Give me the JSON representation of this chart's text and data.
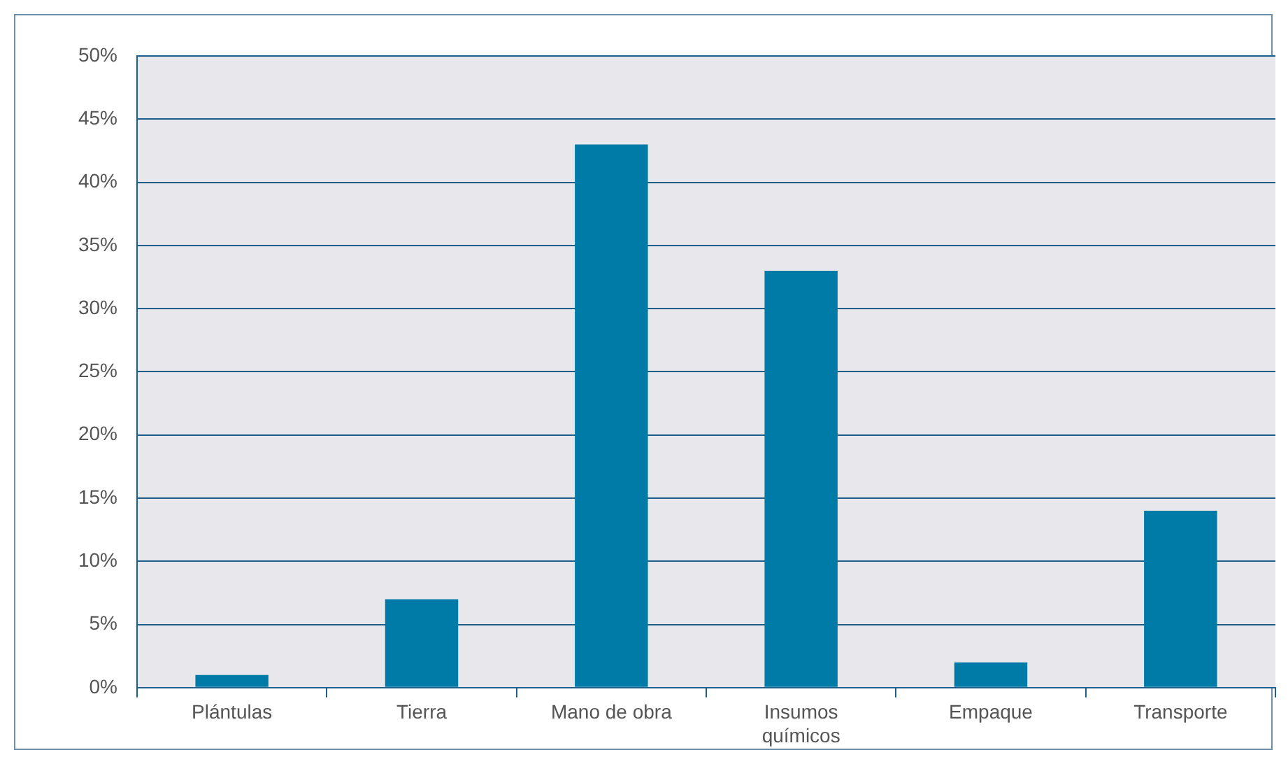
{
  "chart_data": {
    "type": "bar",
    "categories": [
      "Plántulas",
      "Tierra",
      "Mano de obra",
      "Insumos químicos",
      "Empaque",
      "Transporte"
    ],
    "values": [
      1,
      7,
      43,
      33,
      2,
      14
    ],
    "color": "#007ba7",
    "ylim": [
      0,
      50
    ],
    "yticks": [
      {
        "value": 0,
        "label": "0%"
      },
      {
        "value": 5,
        "label": "5%"
      },
      {
        "value": 10,
        "label": "10%"
      },
      {
        "value": 15,
        "label": "15%"
      },
      {
        "value": 20,
        "label": "20%"
      },
      {
        "value": 25,
        "label": "25%"
      },
      {
        "value": 30,
        "label": "30%"
      },
      {
        "value": 35,
        "label": "35%"
      },
      {
        "value": 40,
        "label": "40%"
      },
      {
        "value": 45,
        "label": "45%"
      },
      {
        "value": 50,
        "label": "50%"
      }
    ],
    "grid": "y",
    "legend": false
  }
}
